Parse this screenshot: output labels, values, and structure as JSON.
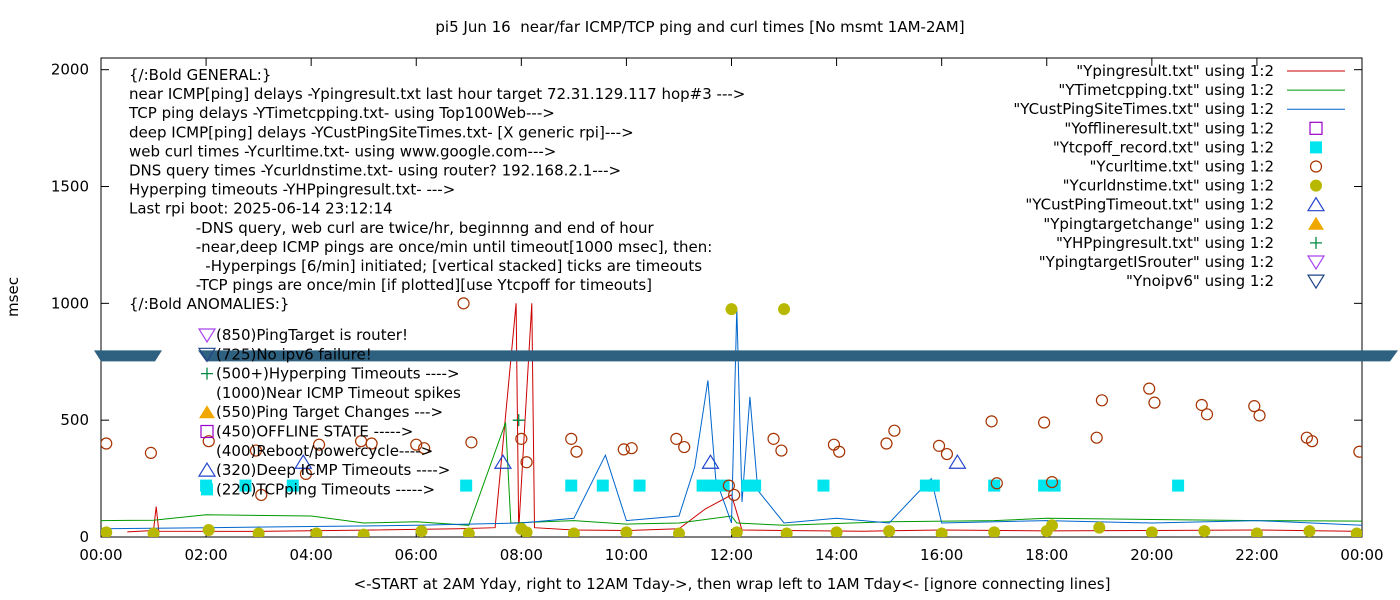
{
  "chart_data": {
    "type": "line",
    "title": "pi5 Jun 16  near/far ICMP/TCP ping and curl times [No msmt 1AM-2AM]",
    "xlabel": "<-START at 2AM Yday, right to 12AM Tday->, then wrap left to 1AM Tday<- [ignore connecting lines]",
    "ylabel": "msec",
    "xlim": [
      0,
      24
    ],
    "ylim": [
      0,
      2050
    ],
    "x_ticks": [
      0,
      2,
      4,
      6,
      8,
      10,
      12,
      14,
      16,
      18,
      20,
      22,
      24
    ],
    "x_tick_labels": [
      "00:00",
      "02:00",
      "04:00",
      "06:00",
      "08:00",
      "10:00",
      "12:00",
      "14:00",
      "16:00",
      "18:00",
      "20:00",
      "22:00",
      "00:00"
    ],
    "y_ticks": [
      0,
      500,
      1000,
      1500,
      2000
    ],
    "y_tick_labels": [
      "0",
      "500",
      "1000",
      "1500",
      "2000"
    ],
    "grid": false,
    "legend_position": "top-right",
    "series": [
      {
        "name": "\"Ypingresult.txt\" using 1:2",
        "style": "line",
        "color": "#cc0000",
        "points": [
          [
            0.5,
            22
          ],
          [
            1.0,
            28
          ],
          [
            1.05,
            130
          ],
          [
            1.1,
            25
          ],
          [
            3.0,
            24
          ],
          [
            5.2,
            30
          ],
          [
            6.8,
            35
          ],
          [
            7.5,
            40
          ],
          [
            7.9,
            1000
          ],
          [
            7.95,
            30
          ],
          [
            8.2,
            1000
          ],
          [
            8.25,
            40
          ],
          [
            9.0,
            30
          ],
          [
            10.0,
            28
          ],
          [
            11.0,
            35
          ],
          [
            11.5,
            120
          ],
          [
            12.0,
            180
          ],
          [
            12.2,
            30
          ],
          [
            13.0,
            28
          ],
          [
            14.5,
            25
          ],
          [
            16.0,
            30
          ],
          [
            18.0,
            26
          ],
          [
            20.0,
            28
          ],
          [
            22.0,
            30
          ],
          [
            23.8,
            25
          ]
        ]
      },
      {
        "name": "\"YTimetcpping.txt\" using 1:2",
        "style": "line",
        "color": "#009900",
        "points": [
          [
            0.0,
            70
          ],
          [
            1.0,
            72
          ],
          [
            2.0,
            95
          ],
          [
            4.0,
            90
          ],
          [
            5.0,
            60
          ],
          [
            6.0,
            65
          ],
          [
            7.0,
            50
          ],
          [
            7.7,
            490
          ],
          [
            7.8,
            60
          ],
          [
            9.0,
            70
          ],
          [
            10.0,
            55
          ],
          [
            11.0,
            60
          ],
          [
            12.0,
            90
          ],
          [
            12.1,
            60
          ],
          [
            13.0,
            50
          ],
          [
            15.0,
            65
          ],
          [
            17.0,
            70
          ],
          [
            18.0,
            80
          ],
          [
            20.0,
            75
          ],
          [
            22.0,
            70
          ],
          [
            24.0,
            68
          ]
        ]
      },
      {
        "name": "\"YCustPingSiteTimes.txt\" using 1:2",
        "style": "line",
        "color": "#0066cc",
        "points": [
          [
            0.0,
            35
          ],
          [
            2.0,
            40
          ],
          [
            4.0,
            45
          ],
          [
            6.0,
            50
          ],
          [
            8.0,
            60
          ],
          [
            9.0,
            80
          ],
          [
            9.6,
            350
          ],
          [
            10.0,
            70
          ],
          [
            11.0,
            90
          ],
          [
            11.3,
            300
          ],
          [
            11.55,
            670
          ],
          [
            11.7,
            250
          ],
          [
            12.0,
            60
          ],
          [
            12.1,
            980
          ],
          [
            12.2,
            150
          ],
          [
            12.35,
            600
          ],
          [
            12.5,
            200
          ],
          [
            13.0,
            60
          ],
          [
            14.0,
            80
          ],
          [
            15.0,
            60
          ],
          [
            15.8,
            250
          ],
          [
            16.0,
            60
          ],
          [
            18.0,
            70
          ],
          [
            20.0,
            60
          ],
          [
            22.0,
            70
          ],
          [
            24.0,
            50
          ]
        ]
      },
      {
        "name": "\"Yofflineresult.txt\" using 1:2",
        "style": "open-square",
        "color": "#9900cc",
        "points": []
      },
      {
        "name": "\"Ytcpoff_record.txt\" using 1:2",
        "style": "filled-square",
        "color": "#00e5ee",
        "points": [
          [
            2.0,
            220
          ],
          [
            2.75,
            220
          ],
          [
            3.65,
            220
          ],
          [
            6.95,
            220
          ],
          [
            8.95,
            220
          ],
          [
            9.55,
            220
          ],
          [
            10.25,
            220
          ],
          [
            11.45,
            220
          ],
          [
            11.65,
            220
          ],
          [
            11.85,
            220
          ],
          [
            12.3,
            220
          ],
          [
            12.45,
            220
          ],
          [
            13.75,
            220
          ],
          [
            15.7,
            220
          ],
          [
            15.85,
            220
          ],
          [
            17.0,
            220
          ],
          [
            17.95,
            220
          ],
          [
            18.15,
            220
          ],
          [
            20.5,
            220
          ]
        ]
      },
      {
        "name": "\"Ycurltime.txt\" using 1:2",
        "style": "open-circle",
        "color": "#a63200",
        "points": [
          [
            0.1,
            400
          ],
          [
            0.95,
            360
          ],
          [
            2.05,
            410
          ],
          [
            2.95,
            370
          ],
          [
            3.05,
            180
          ],
          [
            3.9,
            270
          ],
          [
            4.15,
            395
          ],
          [
            4.95,
            410
          ],
          [
            5.15,
            400
          ],
          [
            6.0,
            395
          ],
          [
            6.15,
            380
          ],
          [
            6.9,
            1000
          ],
          [
            7.05,
            405
          ],
          [
            8.0,
            420
          ],
          [
            8.1,
            320
          ],
          [
            8.95,
            420
          ],
          [
            9.05,
            365
          ],
          [
            9.95,
            375
          ],
          [
            10.1,
            380
          ],
          [
            10.95,
            420
          ],
          [
            11.1,
            385
          ],
          [
            11.95,
            220
          ],
          [
            12.05,
            180
          ],
          [
            12.8,
            420
          ],
          [
            12.95,
            370
          ],
          [
            13.95,
            395
          ],
          [
            14.05,
            365
          ],
          [
            14.95,
            400
          ],
          [
            15.1,
            455
          ],
          [
            15.95,
            390
          ],
          [
            16.1,
            355
          ],
          [
            16.95,
            495
          ],
          [
            17.05,
            230
          ],
          [
            17.95,
            490
          ],
          [
            18.1,
            235
          ],
          [
            18.95,
            425
          ],
          [
            19.05,
            585
          ],
          [
            19.95,
            635
          ],
          [
            20.05,
            575
          ],
          [
            20.95,
            565
          ],
          [
            21.05,
            525
          ],
          [
            21.95,
            560
          ],
          [
            22.05,
            520
          ],
          [
            22.95,
            425
          ],
          [
            23.05,
            410
          ],
          [
            23.95,
            365
          ]
        ]
      },
      {
        "name": "\"Ycurldnstime.txt\" using 1:2",
        "style": "filled-circle",
        "color": "#b8b800",
        "points": [
          [
            0.1,
            20
          ],
          [
            1.0,
            15
          ],
          [
            2.05,
            30
          ],
          [
            3.0,
            15
          ],
          [
            4.1,
            15
          ],
          [
            5.0,
            10
          ],
          [
            6.1,
            25
          ],
          [
            7.0,
            15
          ],
          [
            8.0,
            35
          ],
          [
            8.1,
            20
          ],
          [
            9.0,
            15
          ],
          [
            10.0,
            20
          ],
          [
            11.0,
            15
          ],
          [
            12.0,
            975
          ],
          [
            12.1,
            20
          ],
          [
            13.0,
            975
          ],
          [
            13.05,
            15
          ],
          [
            14.0,
            20
          ],
          [
            15.0,
            25
          ],
          [
            16.0,
            15
          ],
          [
            17.0,
            20
          ],
          [
            18.0,
            25
          ],
          [
            18.1,
            50
          ],
          [
            19.0,
            40
          ],
          [
            20.0,
            20
          ],
          [
            21.0,
            25
          ],
          [
            22.0,
            15
          ],
          [
            23.0,
            25
          ],
          [
            23.9,
            15
          ]
        ]
      },
      {
        "name": "\"YCustPingTimeout.txt\" using 1:2",
        "style": "open-triangle",
        "color": "#2244cc",
        "points": [
          [
            3.85,
            320
          ],
          [
            7.65,
            320
          ],
          [
            11.6,
            320
          ],
          [
            16.3,
            320
          ]
        ]
      },
      {
        "name": "\"Ypingtargetchange\" using 1:2",
        "style": "filled-triangle",
        "color": "#f0a800",
        "points": []
      },
      {
        "name": "\"YHPpingresult.txt\" using 1:2",
        "style": "plus",
        "color": "#008844",
        "points": [
          [
            7.95,
            500
          ]
        ]
      },
      {
        "name": "\"YpingtargetISrouter\" using 1:2",
        "style": "open-down-triangle",
        "color": "#aa44ee",
        "points": []
      },
      {
        "name": "\"Ynoipv6\" using 1:2",
        "style": "open-down-triangle",
        "color": "#224488",
        "points": []
      }
    ],
    "band": {
      "y": 775,
      "color": "#2e6080"
    },
    "notes": [
      "{/:Bold GENERAL:}",
      "near ICMP[ping] delays -Ypingresult.txt last hour target 72.31.129.117 hop#3 --->",
      "TCP ping delays -YTimetcpping.txt- using Top100Web--->",
      "deep ICMP[ping] delays -YCustPingSiteTimes.txt- [X generic rpi]--->",
      "web curl times -Ycurltime.txt- using www.google.com--->",
      "DNS query times -Ycurldnstime.txt- using router? 192.168.2.1--->",
      "Hyperping timeouts -YHPpingresult.txt- --->",
      "Last rpi boot: 2025-06-14 23:12:14",
      "              -DNS query, web curl are twice/hr, beginnng and end of hour",
      "              -near,deep ICMP pings are once/min until timeout[1000 msec], then:",
      "                -Hyperpings [6/min] initiated; [vertical stacked] ticks are timeouts",
      "              -TCP pings are once/min [if plotted][use Ytcpoff for timeouts]",
      "{/:Bold ANOMALIES:}"
    ],
    "anomalies": [
      {
        "symbol": "open-down-triangle",
        "color": "#aa44ee",
        "label": "(850)PingTarget is router!"
      },
      {
        "symbol": "open-down-triangle",
        "color": "#224488",
        "label": "(725)No ipv6 failure!"
      },
      {
        "symbol": "plus",
        "color": "#008844",
        "label": "(500+)Hyperping Timeouts ---->"
      },
      {
        "symbol": "none",
        "color": "#000000",
        "label": "(1000)Near ICMP Timeout spikes"
      },
      {
        "symbol": "filled-triangle",
        "color": "#f0a800",
        "label": "(550)Ping Target Changes --->"
      },
      {
        "symbol": "open-square",
        "color": "#9900cc",
        "label": "(450)OFFLINE STATE ----->"
      },
      {
        "symbol": "none",
        "color": "#000000",
        "label": "(400)Reboot/powercycle---->"
      },
      {
        "symbol": "open-triangle",
        "color": "#2244cc",
        "label": "(320)Deep ICMP Timeouts ---->"
      },
      {
        "symbol": "filled-square",
        "color": "#00e5ee",
        "label": "(220)TCPping Timeouts ----->"
      }
    ]
  }
}
